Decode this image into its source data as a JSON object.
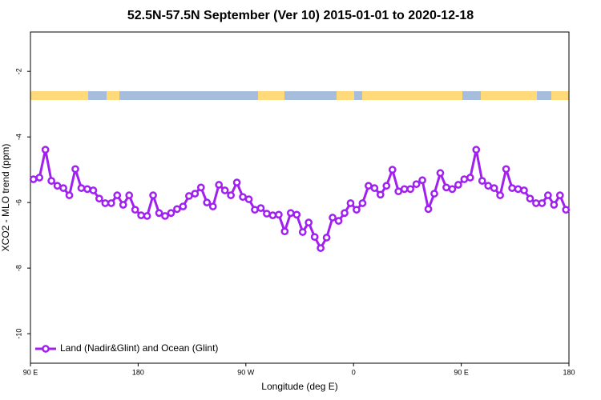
{
  "chart_data": {
    "type": "line",
    "title": "52.5N-57.5N September (Ver 10)   2015-01-01 to 2020-12-18",
    "x_label": "Longitude (deg E)",
    "y_label": "XCO2 - MLO trend (ppm)",
    "xlim": [
      90,
      540
    ],
    "ylim": [
      -10.9,
      -0.8
    ],
    "xticks": [
      {
        "value": 90,
        "label": "90 E"
      },
      {
        "value": 180,
        "label": "180"
      },
      {
        "value": 270,
        "label": "90 W"
      },
      {
        "value": 360,
        "label": "0"
      },
      {
        "value": 450,
        "label": "90 E"
      },
      {
        "value": 540,
        "label": "180"
      }
    ],
    "yticks": [
      -2,
      -4,
      -6,
      -8,
      -10
    ],
    "legend": "bottom-left",
    "x": [
      92.5,
      97.5,
      102.5,
      107.5,
      112.5,
      117.5,
      122.5,
      127.5,
      132.5,
      137.5,
      142.5,
      147.5,
      152.5,
      157.5,
      162.5,
      167.5,
      172.5,
      177.5,
      182.5,
      187.5,
      192.5,
      197.5,
      202.5,
      207.5,
      212.5,
      217.5,
      222.5,
      227.5,
      232.5,
      237.5,
      242.5,
      247.5,
      252.5,
      257.5,
      262.5,
      267.5,
      272.5,
      277.5,
      282.5,
      287.5,
      292.5,
      297.5,
      302.5,
      307.5,
      312.5,
      317.5,
      322.5,
      327.5,
      332.5,
      337.5,
      342.5,
      347.5,
      352.5,
      357.5,
      362.5,
      367.5,
      372.5,
      377.5,
      382.5,
      387.5,
      392.5,
      397.5,
      402.5,
      407.5,
      412.5,
      417.5,
      422.5,
      427.5,
      432.5,
      437.5,
      442.5,
      447.5,
      452.5,
      457.5,
      462.5,
      467.5,
      472.5,
      477.5,
      482.5,
      487.5,
      492.5,
      497.5,
      502.5,
      507.5,
      512.5,
      517.5,
      522.5,
      527.5,
      532.5,
      537.5
    ],
    "series": [
      {
        "name": "Land (Nadir&Glint) and Ocean (Glint)",
        "color": "#a020f0",
        "values": [
          -5.29,
          -5.24,
          -4.39,
          -5.34,
          -5.49,
          -5.56,
          -5.78,
          -4.98,
          -5.56,
          -5.59,
          -5.63,
          -5.88,
          -6.02,
          -6.02,
          -5.78,
          -6.07,
          -5.78,
          -6.22,
          -6.39,
          -6.41,
          -5.78,
          -6.32,
          -6.41,
          -6.32,
          -6.2,
          -6.12,
          -5.8,
          -5.73,
          -5.54,
          -6.0,
          -6.12,
          -5.46,
          -5.63,
          -5.78,
          -5.39,
          -5.83,
          -5.9,
          -6.22,
          -6.17,
          -6.34,
          -6.39,
          -6.37,
          -6.88,
          -6.32,
          -6.37,
          -6.9,
          -6.61,
          -7.05,
          -7.39,
          -7.07,
          -6.46,
          -6.56,
          -6.32,
          -6.02,
          -6.22,
          -6.02,
          -5.49,
          -5.56,
          -5.76,
          -5.49,
          -5.0,
          -5.66,
          -5.59,
          -5.59,
          -5.44,
          -5.32,
          -6.2,
          -5.73,
          -5.1,
          -5.54,
          -5.59,
          -5.46,
          -5.29,
          -5.24,
          -4.39,
          -5.34,
          -5.49,
          -5.56,
          -5.78,
          -4.98,
          -5.56,
          -5.59,
          -5.63,
          -5.88,
          -6.02,
          -6.02,
          -5.78,
          -6.07,
          -5.78,
          -6.22
        ]
      }
    ]
  }
}
